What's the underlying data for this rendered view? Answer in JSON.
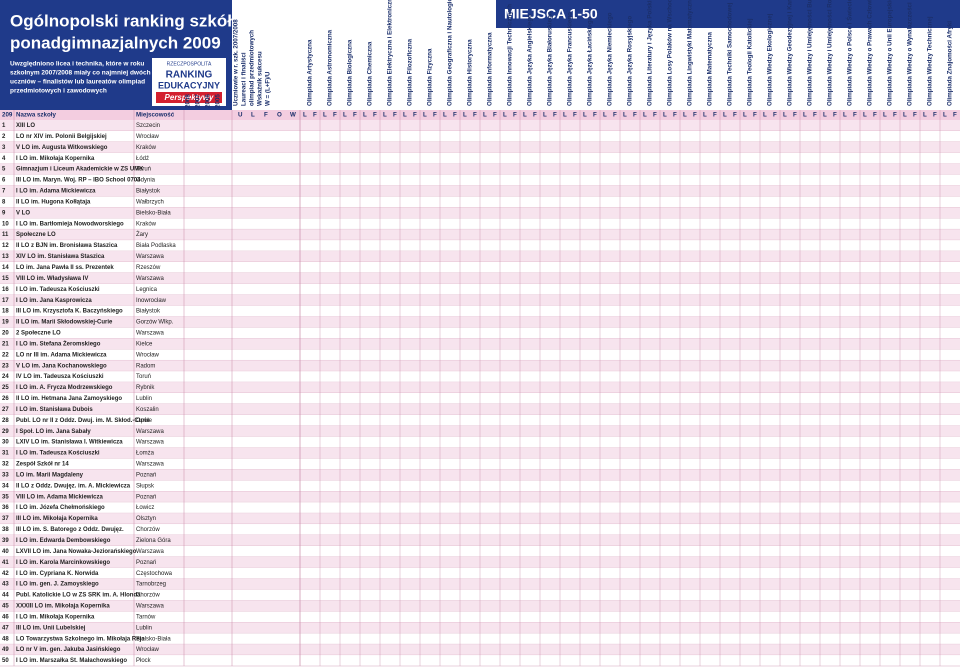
{
  "header": {
    "title": "Ogólnopolski ranking szkół ponadgimnazjalnych 2009",
    "description": [
      "Uwzględniono licea i technika, które w roku",
      "szkolnym 2007/2008 miały co najmniej dwóch",
      "uczniów – finalistów lub laureatów olimpiad",
      "przedmiotowych i zawodowych"
    ],
    "logo": [
      "RZECZPOSPOLITA",
      "RANKING",
      "EDUKACYJNY",
      "Perspektywy"
    ],
    "right_title": "MIEJSCA 1-50"
  },
  "columns": {
    "rank": "209",
    "name": "Nazwa szkoły",
    "city": "Miejscowość",
    "years": [
      "2008",
      "2007",
      "2006",
      "2005"
    ],
    "stats_title": [
      "Uczniowie w r. szk. 2007/2008",
      "Laureaci i finaliści",
      "olimpiad przedmiotowych",
      "Wskaźnik sukcesu",
      "W = (L+F)/U"
    ],
    "stats": [
      "U",
      "L",
      "F",
      "O",
      "W"
    ],
    "olympiad_sub": [
      "L",
      "F"
    ],
    "olympiads_left": [
      "Olimpiada Artystyczna",
      "Olimpiada Astronomiczna",
      "Olimpiada Biologiczna",
      "Olimpiada Chemiczna",
      "Olimpiada Elektryczna i Elektroniczna „Euroelektra”",
      "Olimpiada Filozoficzna",
      "Olimpiada Fizyczna",
      "Olimpiada Geograficzna i Nautologiczna",
      "Olimpiada Historyczna",
      "Olimpiada Informatyczna"
    ],
    "olympiads_right": [
      "Olimpiada Innowacji Technicznych",
      "Olimpiada Języka Angielskiego",
      "Olimpiada Języka Białoruskiego",
      "Olimpiada Języka Francuskiego",
      "Olimpiada Języka Łacińskiego",
      "Olimpiada Języka Niemieckiego",
      "Olimpiada Języka Rosyjskiego",
      "Olimpiada Literatury i Języka Polskiego",
      "Olimpiada Losy Polaków na Wschodzie po 17 IX 1939 r.",
      "Olimpiada Lingwistyki Matematycznej",
      "Olimpiada Matematyczna",
      "Olimpiada Techniki Samochodowej",
      "Olimpiada Teologii Katolickiej",
      "Olimpiada Wiedzy Ekologicznej",
      "Olimpiada Wiedzy Geodezyjnej i Kartograficznej",
      "Olimpiada Wiedzy i Umiejętności Budowlanych",
      "Olimpiada Wiedzy i Umiejętności Rolniczych",
      "Olimpiada Wiedzy o Polsce i Świecie Współczesnym",
      "Olimpiada Wiedzy o Prawach Człowieka",
      "Olimpiada Wiedzy o Unii Europejskiej",
      "Olimpiada Wiedzy o Wynalazczości",
      "Olimpiada Wiedzy Technicznej",
      "Olimpiada Znajomości Afryki"
    ]
  },
  "table": {
    "rows": [
      [
        "1",
        "XIII LO",
        "Szczecin"
      ],
      [
        "2",
        "LO nr XIV im. Polonii Belgijskiej",
        "Wrocław"
      ],
      [
        "3",
        "V LO im. Augusta Witkowskiego",
        "Kraków"
      ],
      [
        "4",
        "I LO im. Mikołaja Kopernika",
        "Łódź"
      ],
      [
        "5",
        "Gimnazjum i Liceum Akademickie w ZS UMK",
        "Toruń"
      ],
      [
        "6",
        "III LO im. Maryn. Woj. RP – IBO School 0704",
        "Gdynia"
      ],
      [
        "7",
        "I LO im. Adama Mickiewicza",
        "Białystok"
      ],
      [
        "8",
        "II LO im. Hugona Kołłątaja",
        "Wałbrzych"
      ],
      [
        "9",
        "V LO",
        "Bielsko-Biała"
      ],
      [
        "10",
        "I LO im. Bartłomieja Nowodworskiego",
        "Kraków"
      ],
      [
        "11",
        "Społeczne LO",
        "Żary"
      ],
      [
        "12",
        "II LO z BJN im. Bronisława Staszica",
        "Biała Podlaska"
      ],
      [
        "13",
        "XIV LO im. Stanisława Staszica",
        "Warszawa"
      ],
      [
        "14",
        "LO im. Jana Pawła II ss. Prezentek",
        "Rzeszów"
      ],
      [
        "15",
        "VIII LO im. Władysława IV",
        "Warszawa"
      ],
      [
        "16",
        "I LO im. Tadeusza Kościuszki",
        "Legnica"
      ],
      [
        "17",
        "I LO im. Jana Kasprowicza",
        "Inowrocław"
      ],
      [
        "18",
        "III LO im. Krzysztofa K. Baczyńskiego",
        "Białystok"
      ],
      [
        "19",
        "II LO im. Marii Skłodowskiej-Curie",
        "Gorzów Wlkp."
      ],
      [
        "20",
        "2 Społeczne LO",
        "Warszawa"
      ],
      [
        "21",
        "I LO im. Stefana Żeromskiego",
        "Kielce"
      ],
      [
        "22",
        "LO nr III im. Adama Mickiewicza",
        "Wrocław"
      ],
      [
        "23",
        "V LO im. Jana Kochanowskiego",
        "Radom"
      ],
      [
        "24",
        "IV LO im. Tadeusza Kościuszki",
        "Toruń"
      ],
      [
        "25",
        "I LO im. A. Frycza Modrzewskiego",
        "Rybnik"
      ],
      [
        "26",
        "II LO im. Hetmana Jana Zamoyskiego",
        "Lublin"
      ],
      [
        "27",
        "I LO im. Stanisława Dubois",
        "Koszalin"
      ],
      [
        "28",
        "Publ. LO nr II z Oddz. Dwuj. im. M. Skłod.-Curie",
        "Opole"
      ],
      [
        "29",
        "I Społ. LO im. Jana Sabały",
        "Warszawa"
      ],
      [
        "30",
        "LXIV LO im. Stanisława I. Witkiewicza",
        "Warszawa"
      ],
      [
        "31",
        "I LO im. Tadeusza Kościuszki",
        "Łomża"
      ],
      [
        "32",
        "Zespół Szkół nr 14",
        "Warszawa"
      ],
      [
        "33",
        "LO im. Marii Magdaleny",
        "Poznań"
      ],
      [
        "34",
        "II LO z Oddz. Dwujęz. im. A. Mickiewicza",
        "Słupsk"
      ],
      [
        "35",
        "VIII LO im. Adama Mickiewicza",
        "Poznań"
      ],
      [
        "36",
        "I LO im. Józefa Chełmońskiego",
        "Łowicz"
      ],
      [
        "37",
        "III LO im. Mikołaja Kopernika",
        "Olsztyn"
      ],
      [
        "38",
        "III LO im. S. Batorego z Oddz. Dwujęz.",
        "Chorzów"
      ],
      [
        "39",
        "I LO im. Edwarda Dembowskiego",
        "Zielona Góra"
      ],
      [
        "40",
        "LXVII LO im. Jana Nowaka-Jeziorańskiego",
        "Warszawa"
      ],
      [
        "41",
        "I LO im. Karola Marcinkowskiego",
        "Poznań"
      ],
      [
        "42",
        "I LO im. Cypriana K. Norwida",
        "Częstochowa"
      ],
      [
        "43",
        "I LO im. gen. J. Zamoyskiego",
        "Tarnobrzeg"
      ],
      [
        "44",
        "Publ. Katolickie LO w ZS SRK im. A. Hlonda",
        "Chorzów"
      ],
      [
        "45",
        "XXXIII LO im. Mikołaja Kopernika",
        "Warszawa"
      ],
      [
        "46",
        "I LO im. Mikołaja Kopernika",
        "Tarnów"
      ],
      [
        "47",
        "III LO im. Unii Lubelskiej",
        "Lublin"
      ],
      [
        "48",
        "LO Towarzystwa Szkolnego im. Mikołaja Reja",
        "Bielsko-Biała"
      ],
      [
        "49",
        "LO nr V im. gen. Jakuba Jasińskiego",
        "Wrocław"
      ],
      [
        "50",
        "I LO im. Marszałka St. Małachowskiego",
        "Płock"
      ]
    ]
  }
}
